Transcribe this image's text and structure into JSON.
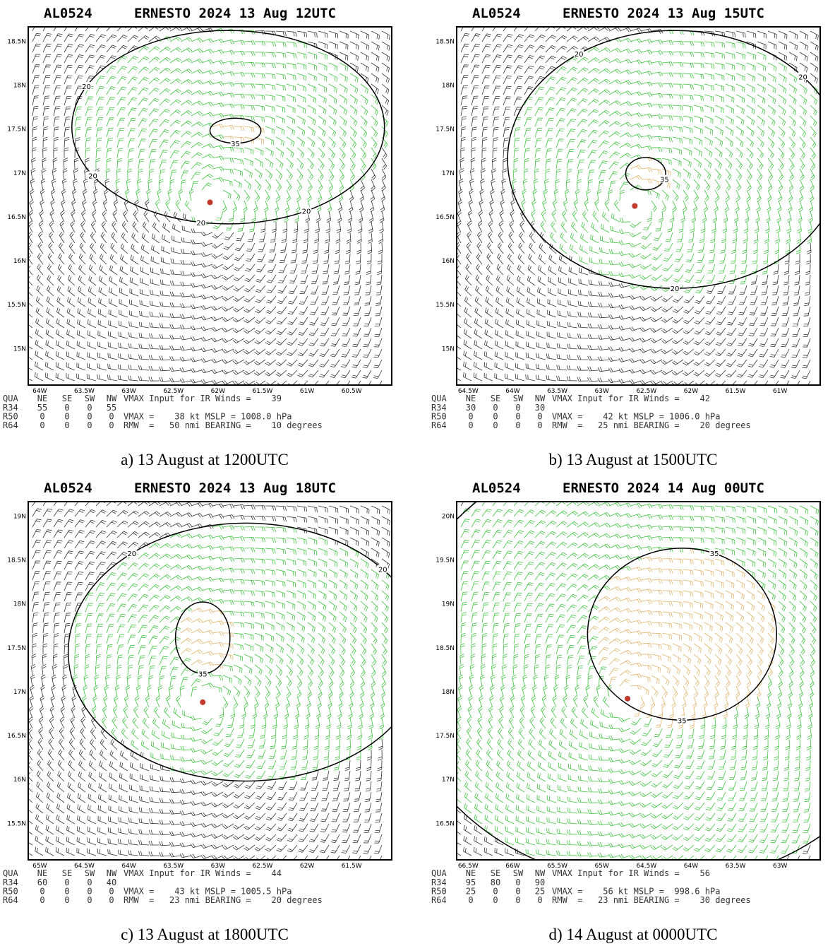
{
  "panels": [
    {
      "storm_id": "AL0524",
      "title": "ERNESTO 2024 13 Aug 12UTC",
      "lat_labels": [
        "18.5N",
        "18N",
        "17.5N",
        "17N",
        "16.5N",
        "16N",
        "15.5N",
        "15N"
      ],
      "lon_labels": [
        "64W",
        "63.5W",
        "63W",
        "62.5W",
        "62W",
        "61.5W",
        "61W",
        "60.5W"
      ],
      "table": {
        "header": [
          "QUA",
          "NE",
          "SE",
          "SW",
          "NW"
        ],
        "rows": [
          [
            "R34",
            "55",
            "0",
            "0",
            "55"
          ],
          [
            "R50",
            "0",
            "0",
            "0",
            "0"
          ],
          [
            "R64",
            "0",
            "0",
            "0",
            "0"
          ]
        ]
      },
      "info": [
        "VMAX Input for IR Winds =    39",
        "VMAX =    38 kt MSLP = 1008.0 hPa",
        "RMW  =   50 nmi BEARING =    10 degrees"
      ],
      "contour_labels": [
        "20",
        "20",
        "20",
        "20",
        "35"
      ],
      "caption": "a) 13 August at 1200UTC"
    },
    {
      "storm_id": "AL0524",
      "title": "ERNESTO 2024 13 Aug 15UTC",
      "lat_labels": [
        "18.5N",
        "18N",
        "17.5N",
        "17N",
        "16.5N",
        "16N",
        "15.5N",
        "15N"
      ],
      "lon_labels": [
        "64.5W",
        "64W",
        "63.5W",
        "63W",
        "62.5W",
        "62W",
        "61.5W",
        "61W"
      ],
      "table": {
        "header": [
          "QUA",
          "NE",
          "SE",
          "SW",
          "NW"
        ],
        "rows": [
          [
            "R34",
            "30",
            "0",
            "0",
            "30"
          ],
          [
            "R50",
            "0",
            "0",
            "0",
            "0"
          ],
          [
            "R64",
            "0",
            "0",
            "0",
            "0"
          ]
        ]
      },
      "info": [
        "VMAX Input for IR Winds =    42",
        "VMAX =    42 kt MSLP = 1006.0 hPa",
        "RMW  =   25 nmi BEARING =    20 degrees"
      ],
      "contour_labels": [
        "20",
        "20",
        "20",
        "35"
      ],
      "caption": "b) 13 August at 1500UTC"
    },
    {
      "storm_id": "AL0524",
      "title": "ERNESTO 2024 13 Aug 18UTC",
      "lat_labels": [
        "19N",
        "18.5N",
        "18N",
        "17.5N",
        "17N",
        "16.5N",
        "16N",
        "15.5N"
      ],
      "lon_labels": [
        "65W",
        "64.5W",
        "64W",
        "63.5W",
        "63W",
        "62.5W",
        "62W",
        "61.5W"
      ],
      "table": {
        "header": [
          "QUA",
          "NE",
          "SE",
          "SW",
          "NW"
        ],
        "rows": [
          [
            "R34",
            "60",
            "0",
            "0",
            "40"
          ],
          [
            "R50",
            "0",
            "0",
            "0",
            "0"
          ],
          [
            "R64",
            "0",
            "0",
            "0",
            "0"
          ]
        ]
      },
      "info": [
        "VMAX Input for IR Winds =    44",
        "VMAX =    43 kt MSLP = 1005.5 hPa",
        "RMW  =   23 nmi BEARING =    20 degrees"
      ],
      "contour_labels": [
        "20",
        "20",
        "35"
      ],
      "caption": "c) 13 August at 1800UTC"
    },
    {
      "storm_id": "AL0524",
      "title": "ERNESTO 2024 14 Aug 00UTC",
      "lat_labels": [
        "20N",
        "19.5N",
        "19N",
        "18.5N",
        "18N",
        "17.5N",
        "17N",
        "16.5N"
      ],
      "lon_labels": [
        "66.5W",
        "66W",
        "65.5W",
        "65W",
        "64.5W",
        "64W",
        "63.5W",
        "63W"
      ],
      "table": {
        "header": [
          "QUA",
          "NE",
          "SE",
          "SW",
          "NW"
        ],
        "rows": [
          [
            "R34",
            "95",
            "80",
            "0",
            "90"
          ],
          [
            "R50",
            "25",
            "0",
            "0",
            "25"
          ],
          [
            "R64",
            "0",
            "0",
            "0",
            "0"
          ]
        ]
      },
      "info": [
        "VMAX Input for IR Winds =    56",
        "VMAX =    56 kt MSLP =  998.6 hPa",
        "RMW  =   23 nmi BEARING =    30 degrees"
      ],
      "contour_labels": [
        "35",
        "35"
      ],
      "caption": "d) 14 August at 0000UTC"
    }
  ]
}
